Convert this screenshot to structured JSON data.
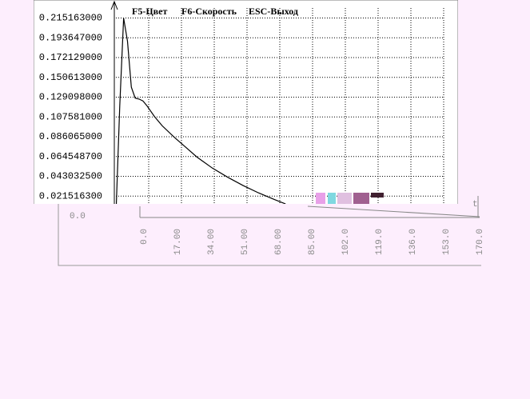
{
  "chart_data": {
    "type": "line",
    "annotations": [
      "F5-Цвет",
      "F6-Скорость",
      "ESC-Выход"
    ],
    "xlabel": "t",
    "x": [
      0,
      2,
      4,
      6,
      8,
      10,
      12,
      14,
      16,
      20,
      24,
      30,
      36,
      42,
      50,
      58,
      66,
      74,
      82,
      88
    ],
    "values": [
      0,
      0.12,
      0.215,
      0.19,
      0.14,
      0.128,
      0.127,
      0.125,
      0.12,
      0.108,
      0.098,
      0.086,
      0.075,
      0.064,
      0.052,
      0.042,
      0.033,
      0.025,
      0.018,
      0.013
    ],
    "color": "#000000",
    "xlim": [
      0,
      170
    ],
    "ylim": [
      0,
      0.226
    ],
    "xticks": [
      {
        "value": 0,
        "label": "0.0"
      },
      {
        "value": 17,
        "label": "17.00"
      },
      {
        "value": 34,
        "label": "34.00"
      },
      {
        "value": 51,
        "label": "51.00"
      },
      {
        "value": 68,
        "label": "68.00"
      },
      {
        "value": 85,
        "label": "85.00"
      },
      {
        "value": 102,
        "label": "102.0"
      },
      {
        "value": 119,
        "label": "119.0"
      },
      {
        "value": 136,
        "label": "136.0"
      },
      {
        "value": 153,
        "label": "153.0"
      },
      {
        "value": 170,
        "label": "170.0"
      }
    ],
    "yticks": [
      {
        "value": 0,
        "label": "0.0"
      },
      {
        "value": 0.0215163,
        "label": "0.021516300"
      },
      {
        "value": 0.0430325,
        "label": "0.043032500"
      },
      {
        "value": 0.0645487,
        "label": "0.064548700"
      },
      {
        "value": 0.086065,
        "label": "0.086065000"
      },
      {
        "value": 0.107581,
        "label": "0.107581000"
      },
      {
        "value": 0.129098,
        "label": "0.129098000"
      },
      {
        "value": 0.150613,
        "label": "0.150613000"
      },
      {
        "value": 0.172129,
        "label": "0.172129000"
      },
      {
        "value": 0.193647,
        "label": "0.193647000"
      },
      {
        "value": 0.215163,
        "label": "0.215163000"
      }
    ],
    "grid": true
  }
}
